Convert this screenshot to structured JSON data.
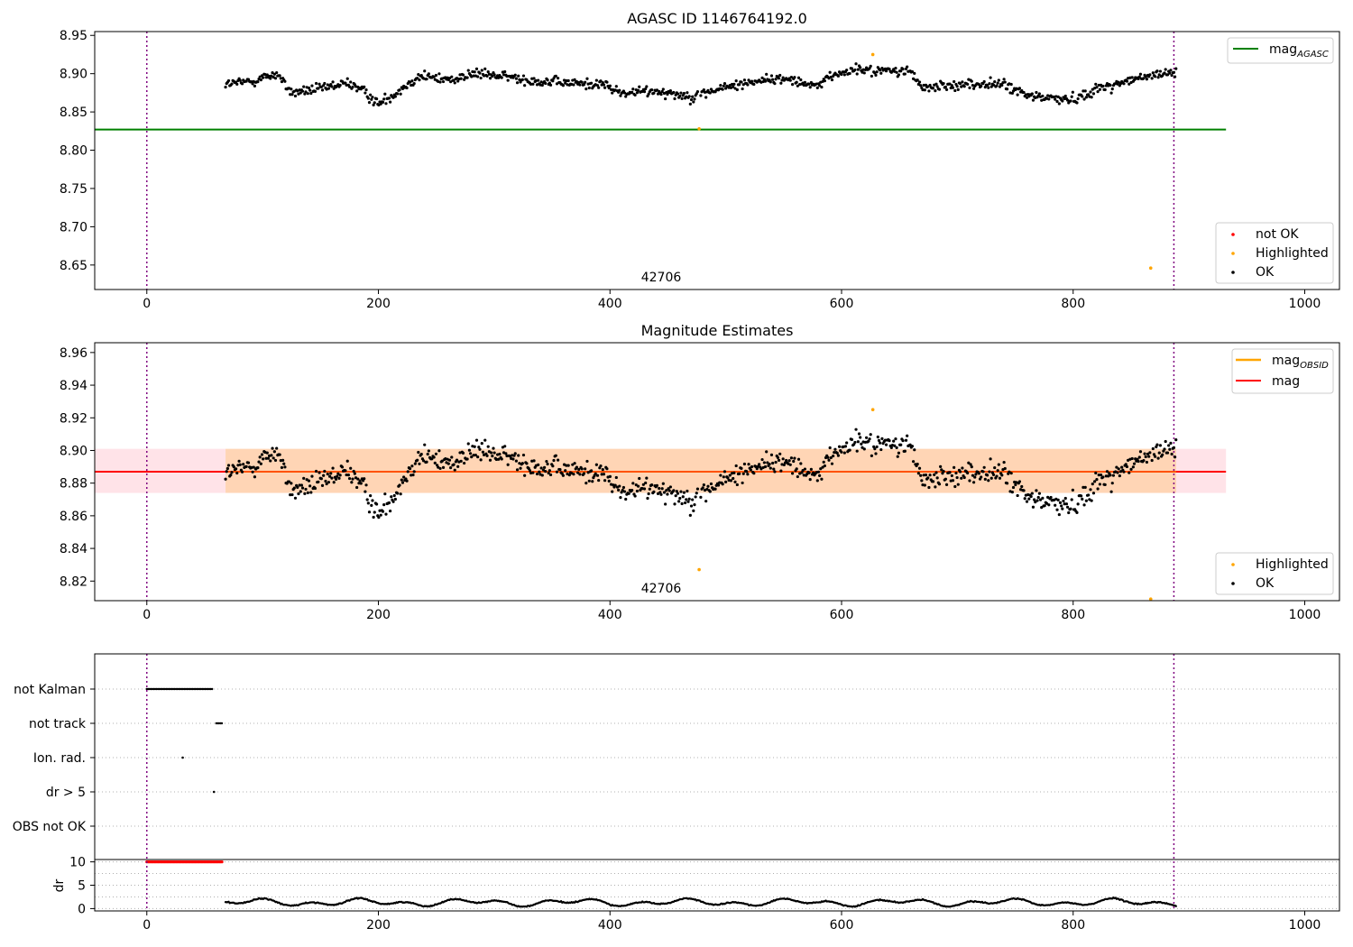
{
  "figure": {
    "top": {
      "title": "AGASC ID 1146764192.0",
      "obsid_label": "42706",
      "xlim": [
        -45,
        1030
      ],
      "ylim": [
        8.618,
        8.955
      ],
      "xticks": [
        0,
        200,
        400,
        600,
        800,
        1000
      ],
      "yticks": [
        "8.65",
        "8.70",
        "8.75",
        "8.80",
        "8.85",
        "8.90",
        "8.95"
      ],
      "ref_line": {
        "value": 8.827,
        "x_end": 932,
        "color": "#008000"
      },
      "vlines": [
        0,
        887
      ],
      "highlighted_points": [
        [
          477,
          8.828
        ],
        [
          627,
          8.925
        ],
        [
          867,
          8.646
        ]
      ],
      "legend_line": {
        "label": "mag",
        "sub": "AGASC",
        "color": "#008000"
      },
      "legend_markers": [
        {
          "label": "not OK",
          "color": "#ff0000"
        },
        {
          "label": "Highlighted",
          "color": "#ffa500"
        },
        {
          "label": "OK",
          "color": "#000000"
        }
      ]
    },
    "middle": {
      "title": "Magnitude Estimates",
      "obsid_label": "42706",
      "xlim": [
        -45,
        1030
      ],
      "ylim": [
        8.808,
        8.966
      ],
      "xticks": [
        0,
        200,
        400,
        600,
        800,
        1000
      ],
      "yticks": [
        "8.82",
        "8.84",
        "8.86",
        "8.88",
        "8.90",
        "8.92",
        "8.94",
        "8.96"
      ],
      "mean_mag": 8.887,
      "band": [
        8.874,
        8.901
      ],
      "band_x_end": 932,
      "vlines": [
        0,
        887
      ],
      "highlighted_points": [
        [
          477,
          8.827
        ],
        [
          627,
          8.925
        ],
        [
          867,
          8.809
        ]
      ],
      "legend_lines": [
        {
          "label": "mag",
          "sub": "OBSID",
          "color": "#ffa500"
        },
        {
          "label": "mag",
          "sub": "",
          "color": "#ff0000"
        }
      ],
      "legend_markers": [
        {
          "label": "Highlighted",
          "color": "#ffa500"
        },
        {
          "label": "OK",
          "color": "#000000"
        }
      ]
    },
    "flags": {
      "labels": [
        "not Kalman",
        "not track",
        "Ion. rad.",
        "dr > 5",
        "OBS not OK"
      ],
      "not_kalman_x": [
        0,
        57
      ],
      "not_track_x": [
        60,
        66
      ],
      "ion_rad_x": [
        31
      ],
      "dr5_x": [
        58
      ]
    },
    "dr": {
      "ylabel": "dr",
      "yticks": [
        "0",
        "5",
        "10"
      ],
      "ylim": [
        -0.5,
        10.5
      ],
      "clipped_x": [
        0,
        66
      ],
      "clipped_value": 10
    }
  }
}
